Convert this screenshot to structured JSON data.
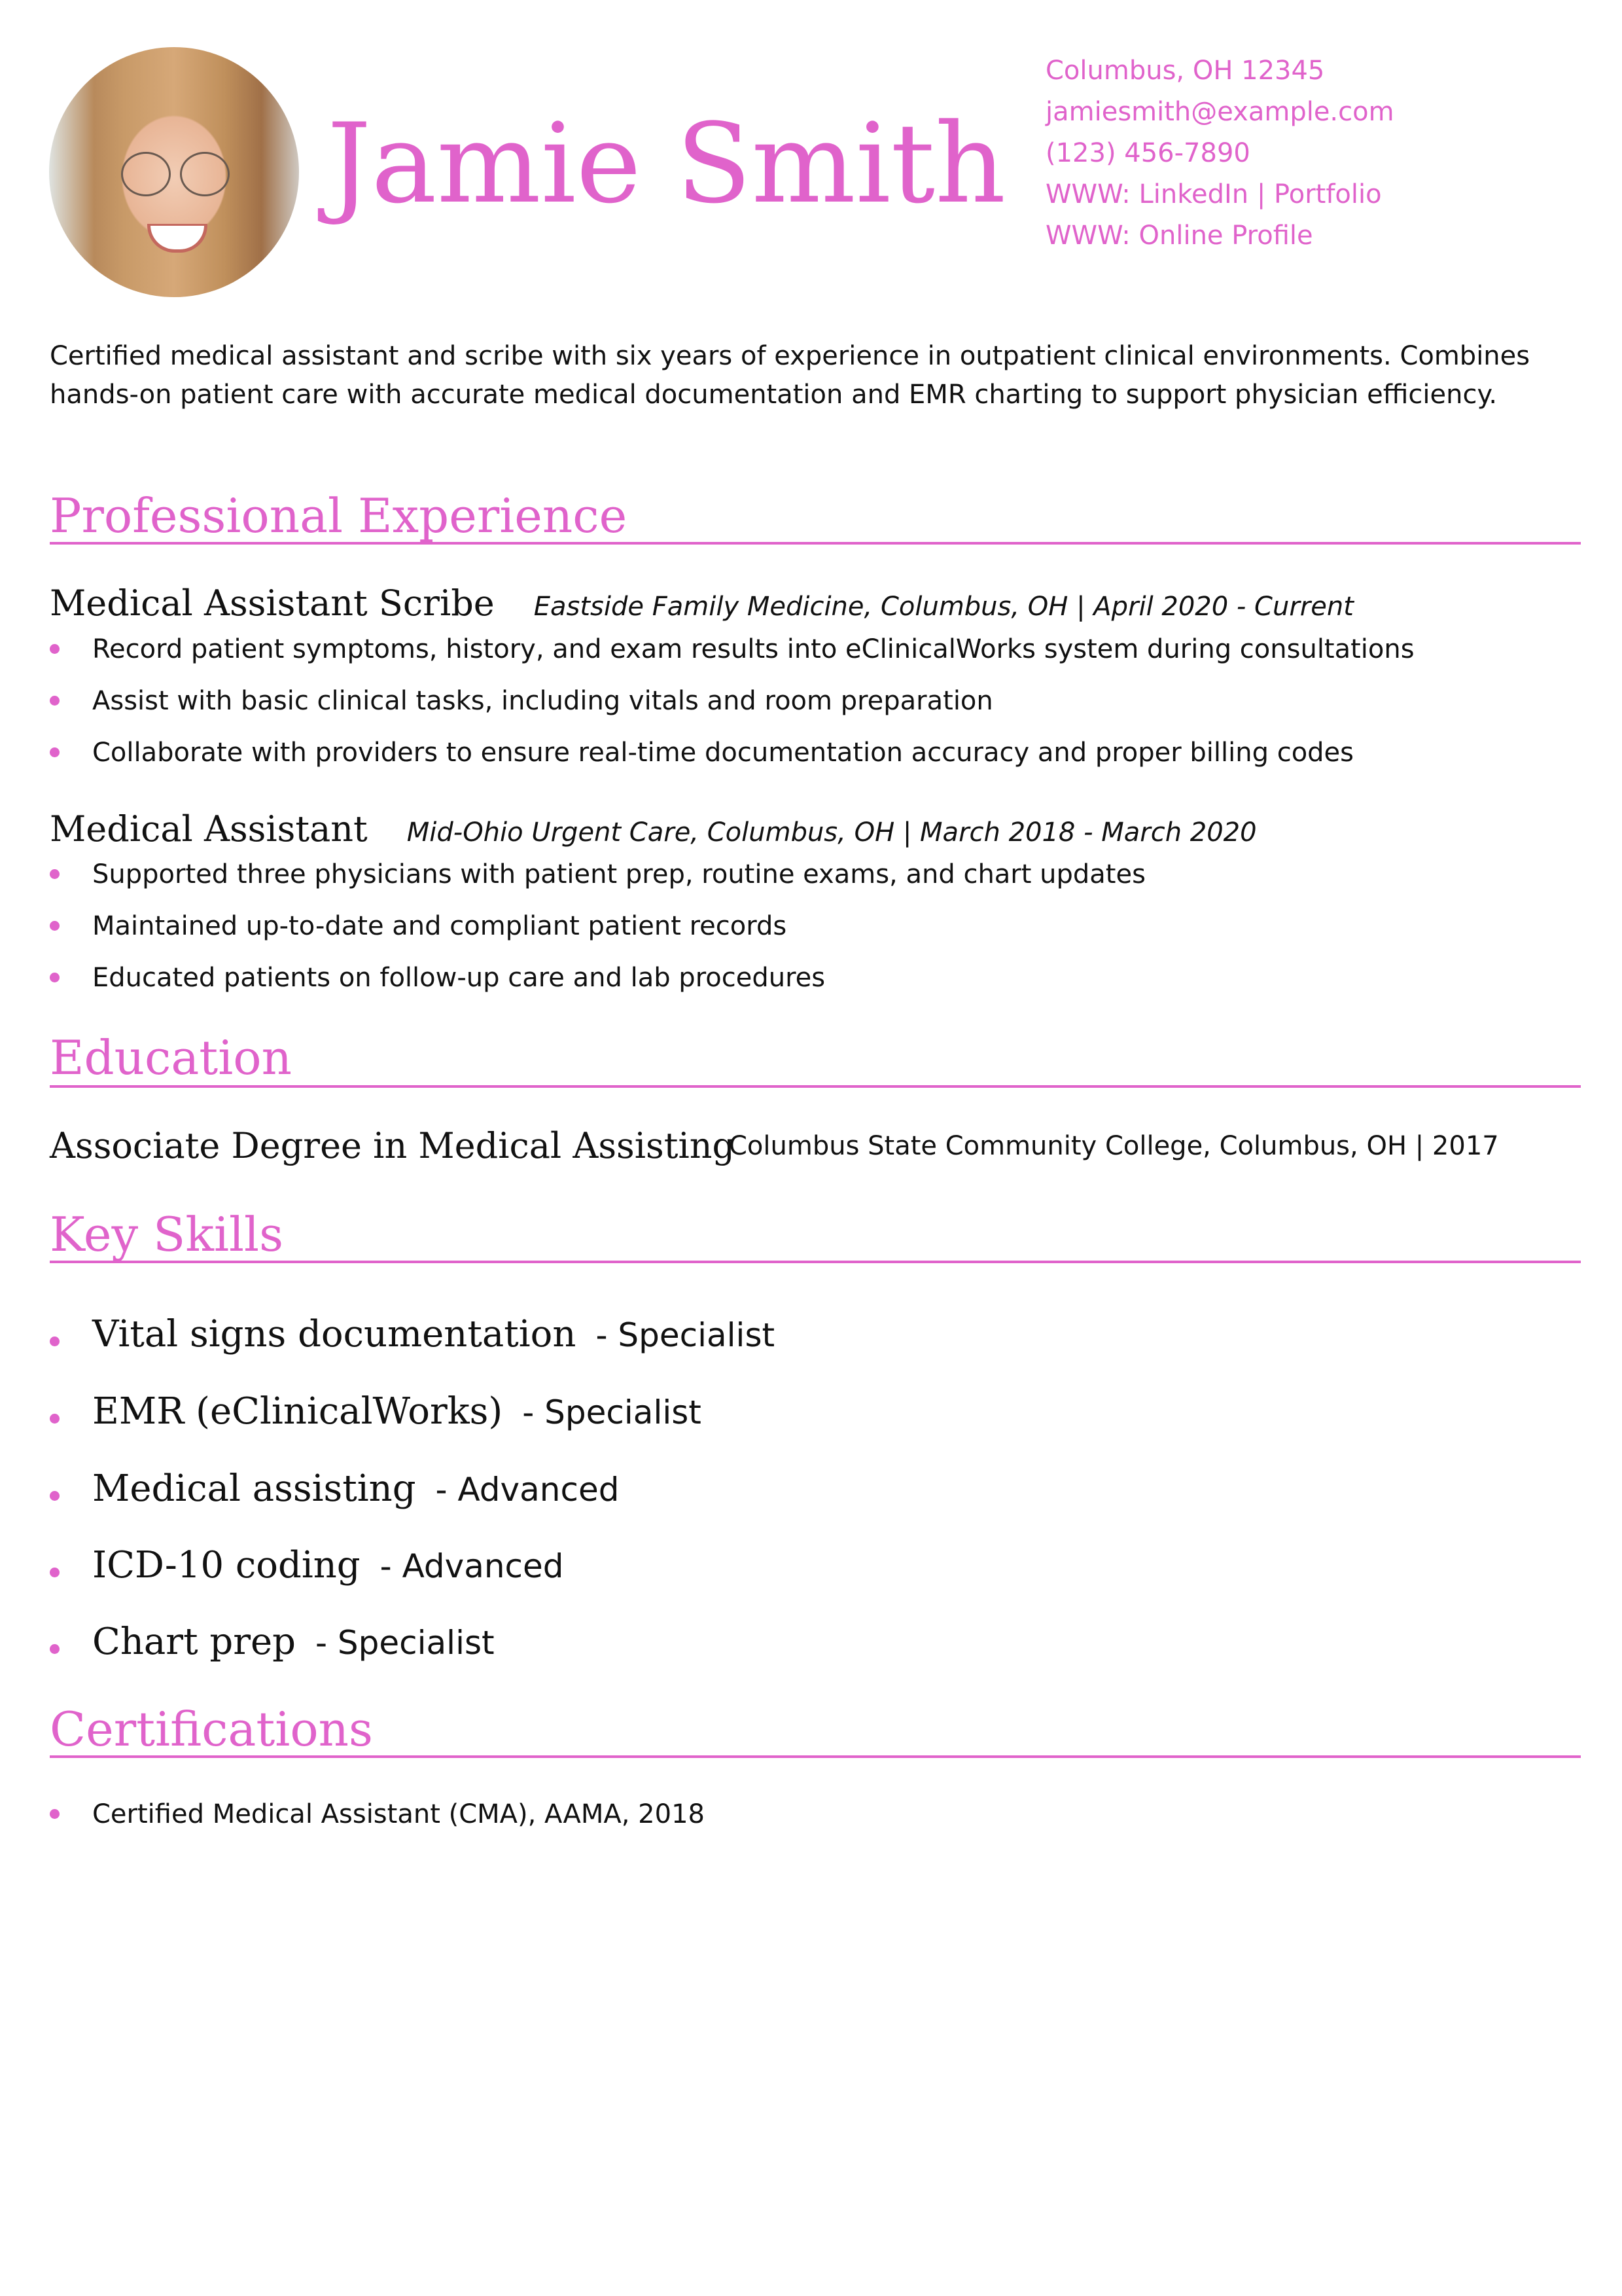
{
  "header": {
    "name": "Jamie Smith",
    "contact": [
      "Columbus, OH 12345",
      "jamiesmith@example.com",
      "(123) 456-7890",
      "WWW: LinkedIn | Portfolio",
      "WWW: Online Profile"
    ]
  },
  "summary": "Certified medical assistant and scribe with six years of experience in outpatient clinical environments. Combines hands-on patient care with accurate medical documentation and EMR charting to support physician efficiency.",
  "sections": {
    "experience": "Professional Experience",
    "education": "Education",
    "skills": "Key Skills",
    "certifications": "Certifications"
  },
  "experience": [
    {
      "title": "Medical Assistant Scribe",
      "meta": "Eastside Family Medicine, Columbus, OH | April 2020 - Current",
      "bullets": [
        "Record patient symptoms, history, and exam results into eClinicalWorks system during consultations",
        "Assist with basic clinical tasks, including vitals and room preparation",
        "Collaborate with providers to ensure real-time documentation accuracy and proper billing codes"
      ]
    },
    {
      "title": "Medical Assistant",
      "meta": "Mid-Ohio Urgent Care, Columbus, OH | March 2018 - March 2020",
      "bullets": [
        "Supported three physicians with patient prep, routine exams, and chart updates",
        "Maintained up-to-date and compliant patient records",
        "Educated patients on follow-up care and lab procedures"
      ]
    }
  ],
  "education": {
    "degree": "Associate Degree in Medical Assisting",
    "school": "Columbus State Community College, Columbus, OH | 2017"
  },
  "skills": [
    {
      "name": "Vital signs documentation",
      "level": "- Specialist"
    },
    {
      "name": "EMR (eClinicalWorks)",
      "level": "- Specialist"
    },
    {
      "name": "Medical assisting",
      "level": "- Advanced"
    },
    {
      "name": "ICD-10 coding",
      "level": "- Advanced"
    },
    {
      "name": "Chart prep",
      "level": "- Specialist"
    }
  ],
  "certifications": [
    "Certified Medical Assistant (CMA), AAMA, 2018"
  ],
  "colors": {
    "accent": "#e063cb",
    "text": "#111111"
  }
}
